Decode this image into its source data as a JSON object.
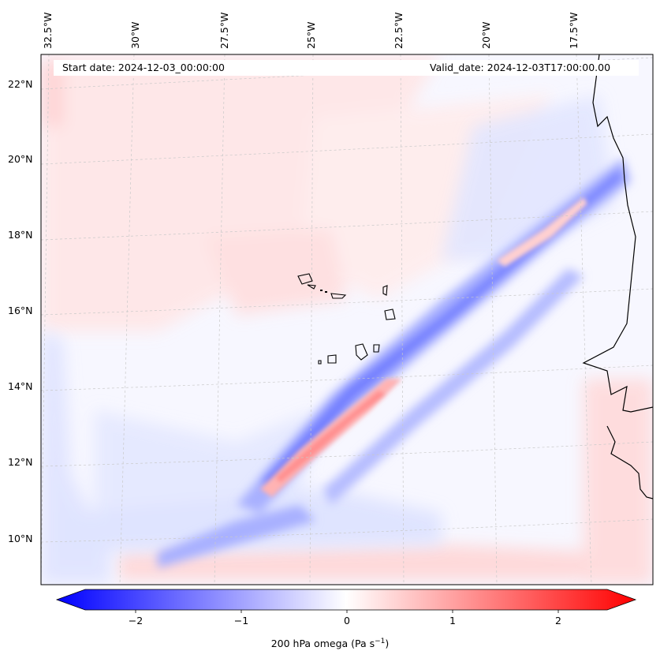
{
  "map": {
    "lon_labels": [
      "32.5°W",
      "30°W",
      "27.5°W",
      "25°W",
      "22.5°W",
      "20°W",
      "17.5°W"
    ],
    "lat_labels": [
      "22°N",
      "20°N",
      "18°N",
      "16°N",
      "14°N",
      "12°N",
      "10°N"
    ],
    "start_date": "Start date: 2024-12-03_00:00:00",
    "valid_date": "Valid_date: 2024-12-03T17:00:00.00"
  },
  "colorbar": {
    "ticks": [
      "−2",
      "−1",
      "0",
      "1",
      "2"
    ],
    "label": "200 hPa omega (Pa s",
    "label_sup": "−1",
    "label_end": ")",
    "range": [
      -2.6,
      2.6
    ],
    "colors": {
      "negative": "#0000ff",
      "zero": "#ffffff",
      "positive": "#ff0000"
    }
  }
}
